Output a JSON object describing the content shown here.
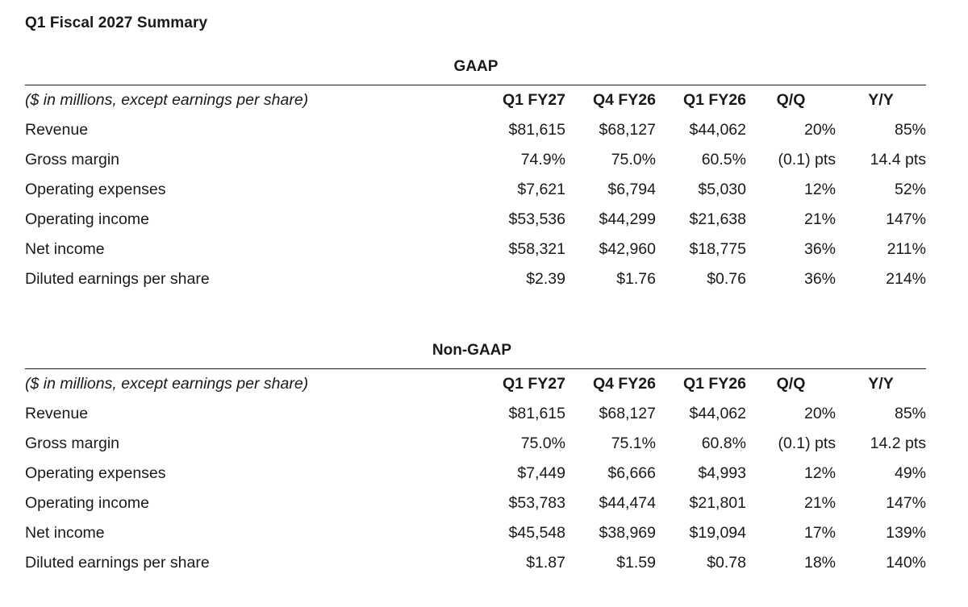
{
  "title": "Q1 Fiscal 2027 Summary",
  "sections": [
    {
      "label": "GAAP",
      "columns": [
        "($ in millions, except earnings per share)",
        "Q1 FY27",
        "Q4 FY26",
        "Q1 FY26",
        "Q/Q",
        "Y/Y"
      ],
      "rows": [
        [
          "Revenue",
          "$81,615",
          "$68,127",
          "$44,062",
          "20%",
          "85%"
        ],
        [
          "Gross margin",
          "74.9%",
          "75.0%",
          "60.5%",
          "(0.1) pts",
          "14.4 pts"
        ],
        [
          "Operating expenses",
          "$7,621",
          "$6,794",
          "$5,030",
          "12%",
          "52%"
        ],
        [
          "Operating income",
          "$53,536",
          "$44,299",
          "$21,638",
          "21%",
          "147%"
        ],
        [
          "Net income",
          "$58,321",
          "$42,960",
          "$18,775",
          "36%",
          "211%"
        ],
        [
          "Diluted earnings per share",
          "$2.39",
          "$1.76",
          "$0.76",
          "36%",
          "214%"
        ]
      ]
    },
    {
      "label": "Non-GAAP",
      "columns": [
        "($ in millions, except earnings per share)",
        "Q1 FY27",
        "Q4 FY26",
        "Q1 FY26",
        "Q/Q",
        "Y/Y"
      ],
      "rows": [
        [
          "Revenue",
          "$81,615",
          "$68,127",
          "$44,062",
          "20%",
          "85%"
        ],
        [
          "Gross margin",
          "75.0%",
          "75.1%",
          "60.8%",
          "(0.1) pts",
          "14.2 pts"
        ],
        [
          "Operating expenses",
          "$7,449",
          "$6,666",
          "$4,993",
          "12%",
          "49%"
        ],
        [
          "Operating income",
          "$53,783",
          "$44,474",
          "$21,801",
          "21%",
          "147%"
        ],
        [
          "Net income",
          "$45,548",
          "$38,969",
          "$19,094",
          "17%",
          "139%"
        ],
        [
          "Diluted earnings per share",
          "$1.87",
          "$1.59",
          "$0.78",
          "18%",
          "140%"
        ]
      ]
    }
  ]
}
